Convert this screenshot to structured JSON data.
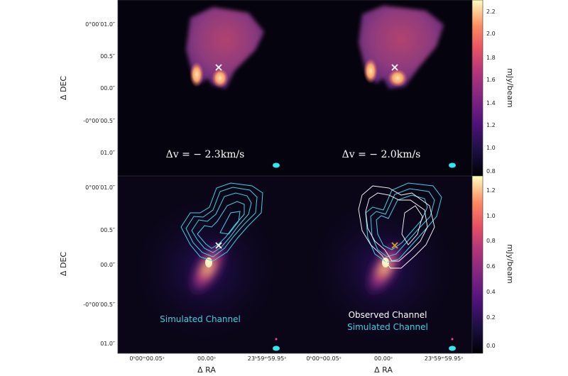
{
  "panels": {
    "top_left_velocity": "Δv = − 2.3km/s",
    "top_right_velocity": "Δv = − 2.0km/s",
    "bottom_left_legend": [
      "Simulated Channel"
    ],
    "bottom_right_legend": [
      "Observed Channel",
      "Simulated Channel"
    ]
  },
  "axes": {
    "ylabel_top": "Δ DEC",
    "ylabel_bottom": "Δ DEC",
    "xlabel": "Δ RA",
    "dec_ticks_top": [
      "0°00′01.0″",
      "00.5″",
      "00.0″",
      "-0°00′00.5″",
      "01.0″"
    ],
    "dec_ticks_bottom": [
      "0°00′01.0″",
      "00.5″",
      "00.0″",
      "-0°00′00.5″",
      "01.0″"
    ],
    "ra_ticks_left": [
      "0ʰ00ᵐ00.05ˢ",
      "00.00ˢ",
      "23ʰ59ᵐ59.95ˢ"
    ],
    "ra_ticks_right": [
      "0ʰ00ᵐ00.05ˢ",
      "00.00ˢ",
      "23ʰ59ᵐ59.95ˢ"
    ]
  },
  "colorbars": {
    "top": {
      "label": "mJy/beam",
      "ticks": [
        "2.2",
        "2.0",
        "1.8",
        "1.6",
        "1.4",
        "1.2",
        "1.0",
        "0.8"
      ]
    },
    "bottom": {
      "label": "mJy/beam",
      "ticks": [
        "1.2",
        "1.0",
        "0.8",
        "0.6",
        "0.4",
        "0.2",
        "0.0"
      ]
    }
  },
  "colors": {
    "background": "#05030d",
    "simulated_contour": "#40d0e0",
    "observed_contour": "#ffffff",
    "marker": "#ffffff",
    "marker_alt": "#e0a020",
    "beam": "#30e8f0",
    "legend_observed": "#ffffff",
    "legend_simulated": "#40d0e0"
  }
}
